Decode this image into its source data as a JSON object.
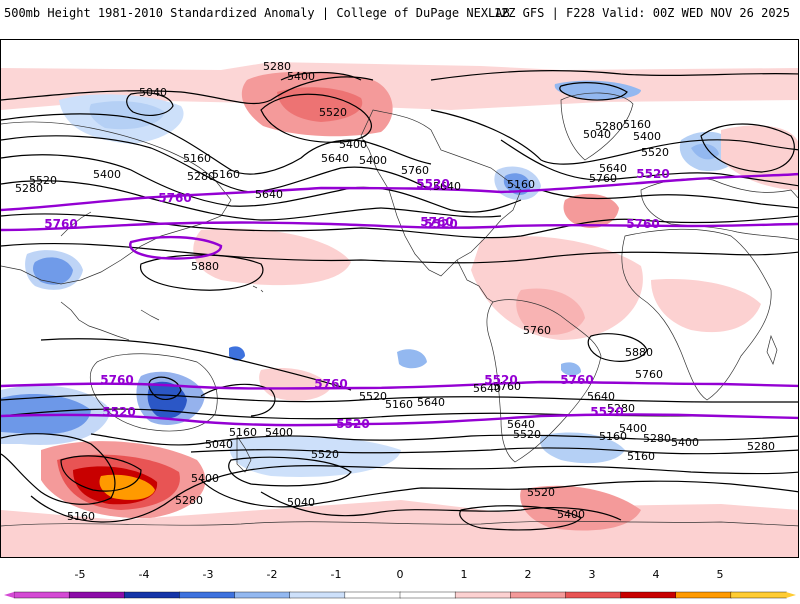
{
  "header": {
    "title_left": "500mb Height 1981-2010 Standardized Anomaly | College of DuPage NEXLAB",
    "title_right": "12Z GFS | F228 Valid: 00Z WED NOV 26 2025"
  },
  "colors": {
    "contour_black": "#000000",
    "contour_purple": "#9400d3",
    "coast": "#333333"
  },
  "contour_labels_black": [
    "5280",
    "5400",
    "5520",
    "5040",
    "5160",
    "5280",
    "5400",
    "5640",
    "5520",
    "5400",
    "5160",
    "5280",
    "5640",
    "5760",
    "5400",
    "5640",
    "5160",
    "5040",
    "5280",
    "5160",
    "5400",
    "5520",
    "5760",
    "5640",
    "5880",
    "5880",
    "5760",
    "5640",
    "5760",
    "5640",
    "5520",
    "5400",
    "5160",
    "5040",
    "5520",
    "5400",
    "5280",
    "5160",
    "5640",
    "5520",
    "5280",
    "5400",
    "5280",
    "5160",
    "5520",
    "5400",
    "5040",
    "5160",
    "5760",
    "5640",
    "5400",
    "5280",
    "5160"
  ],
  "contour_labels_purple": [
    "5520",
    "5760",
    "5520",
    "5760",
    "5520",
    "5760",
    "5760",
    "5520",
    "5760",
    "5760",
    "5760",
    "5520",
    "5520",
    "5520"
  ],
  "colorbar": {
    "ticks": [
      "-5",
      "-4",
      "-3",
      "-2",
      "-1",
      "0",
      "1",
      "2",
      "3",
      "4",
      "5"
    ],
    "colors": [
      "#d44ad4",
      "#8c0ca8",
      "#1535a8",
      "#3e72de",
      "#93b8f0",
      "#cde0fa",
      "#ffffff",
      "#ffffff",
      "#fcd1d1",
      "#f49a9a",
      "#e85454",
      "#c80000",
      "#ff9a00",
      "#ffcc33"
    ]
  }
}
